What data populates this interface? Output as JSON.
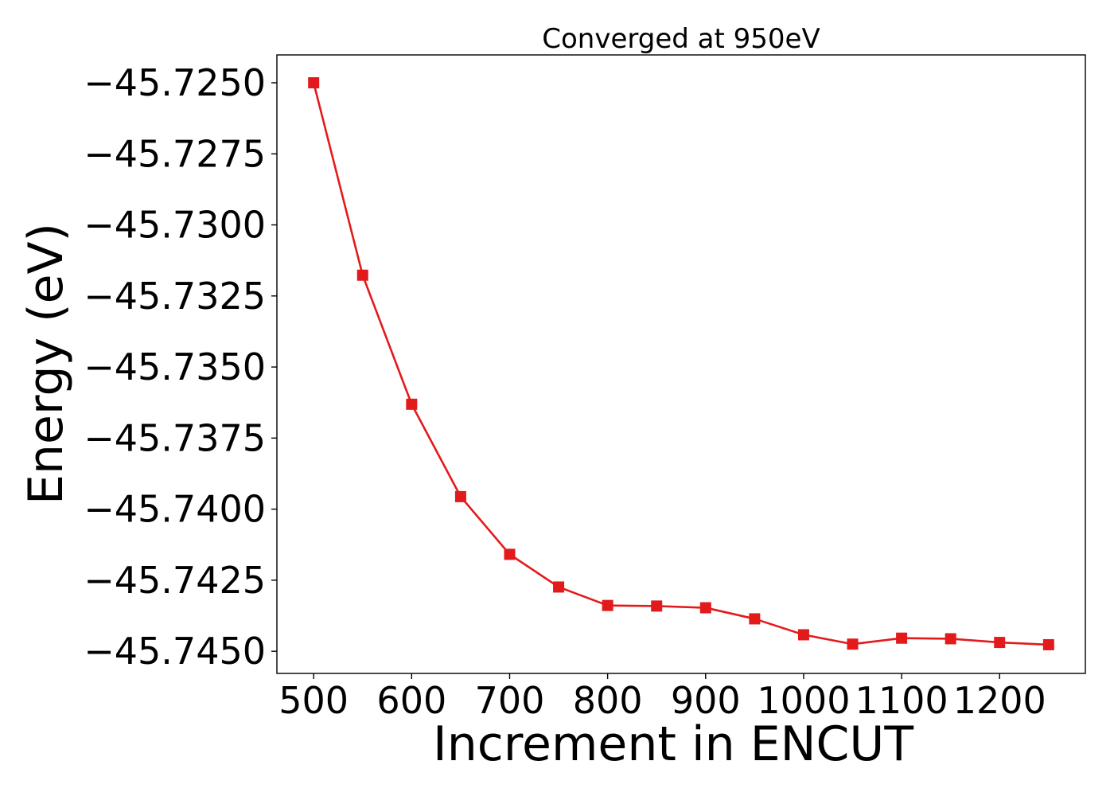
{
  "chart_data": {
    "type": "line",
    "title": "Converged at 950eV",
    "xlabel": "Increment in ENCUT",
    "ylabel": "Energy (eV)",
    "x": [
      500,
      550,
      600,
      650,
      700,
      750,
      800,
      850,
      900,
      950,
      1000,
      1050,
      1100,
      1150,
      1200,
      1250
    ],
    "series": [
      {
        "values": [
          -45.725,
          -45.73177,
          -45.73631,
          -45.73956,
          -45.74159,
          -45.74274,
          -45.74339,
          -45.74341,
          -45.74347,
          -45.74386,
          -45.74442,
          -45.74475,
          -45.74454,
          -45.74456,
          -45.74469,
          -45.74477
        ],
        "color": "#e31a1c",
        "marker": "square"
      }
    ],
    "xlim": [
      462.5,
      1287.5
    ],
    "ylim": [
      -45.74578,
      -45.72402
    ],
    "xticks": [
      500,
      600,
      700,
      800,
      900,
      1000,
      1100,
      1200
    ],
    "xtick_labels": [
      "500",
      "600",
      "700",
      "800",
      "900",
      "1000",
      "1100",
      "1200"
    ],
    "yticks": [
      -45.725,
      -45.7275,
      -45.73,
      -45.7325,
      -45.735,
      -45.7375,
      -45.74,
      -45.7425,
      -45.745
    ],
    "ytick_labels": [
      "−45.7250",
      "−45.7275",
      "−45.7300",
      "−45.7325",
      "−45.7350",
      "−45.7375",
      "−45.7400",
      "−45.7425",
      "−45.7450"
    ],
    "grid": false,
    "legend": "none"
  }
}
